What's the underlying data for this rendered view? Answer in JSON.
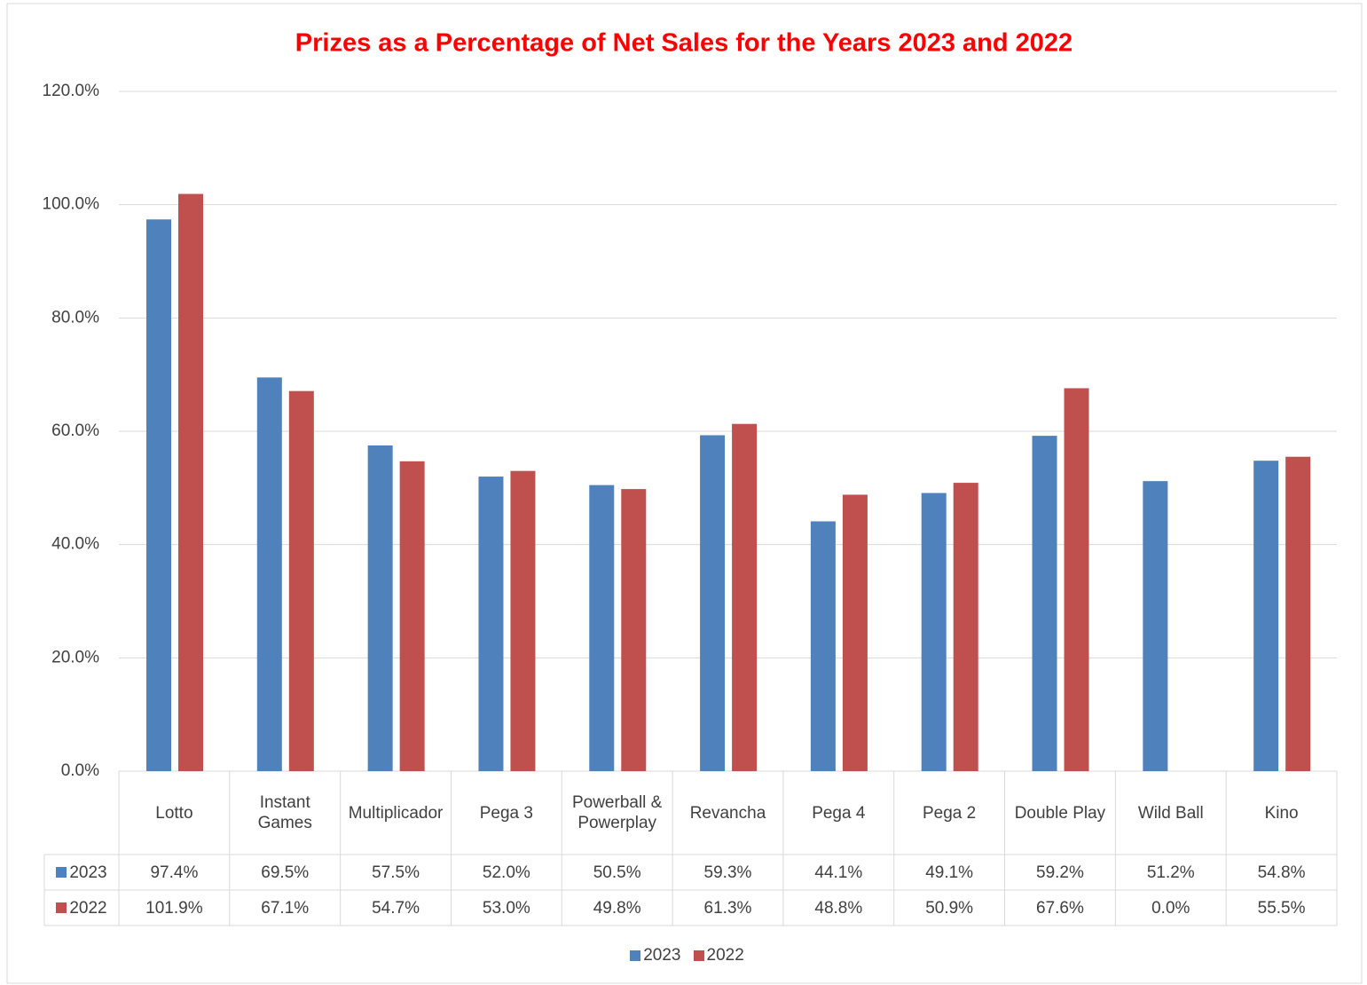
{
  "chart_data": {
    "type": "bar",
    "title": "Prizes as a Percentage of Net Sales for the Years 2023 and 2022",
    "categories": [
      "Lotto",
      "Instant Games",
      "Multiplicador",
      "Pega 3",
      "Powerball & Powerplay",
      "Revancha",
      "Pega 4",
      "Pega 2",
      "Double Play",
      "Wild Ball",
      "Kino"
    ],
    "series": [
      {
        "name": "2023",
        "color": "#4f81bd",
        "values": [
          97.4,
          69.5,
          57.5,
          52.0,
          50.5,
          59.3,
          44.1,
          49.1,
          59.2,
          51.2,
          54.8
        ],
        "value_labels": [
          "97.4%",
          "69.5%",
          "57.5%",
          "52.0%",
          "50.5%",
          "59.3%",
          "44.1%",
          "49.1%",
          "59.2%",
          "51.2%",
          "54.8%"
        ]
      },
      {
        "name": "2022",
        "color": "#c0504d",
        "values": [
          101.9,
          67.1,
          54.7,
          53.0,
          49.8,
          61.3,
          48.8,
          50.9,
          67.6,
          0.0,
          55.5
        ],
        "value_labels": [
          "101.9%",
          "67.1%",
          "54.7%",
          "53.0%",
          "49.8%",
          "61.3%",
          "48.8%",
          "50.9%",
          "67.6%",
          "0.0%",
          "55.5%"
        ]
      }
    ],
    "ylim": [
      0,
      120
    ],
    "yticks": [
      {
        "value": 0,
        "label": "0.0%"
      },
      {
        "value": 20,
        "label": "20.0%"
      },
      {
        "value": 40,
        "label": "40.0%"
      },
      {
        "value": 60,
        "label": "60.0%"
      },
      {
        "value": 80,
        "label": "80.0%"
      },
      {
        "value": 100,
        "label": "100.0%"
      },
      {
        "value": 120,
        "label": "120.0%"
      }
    ],
    "grid": true
  }
}
